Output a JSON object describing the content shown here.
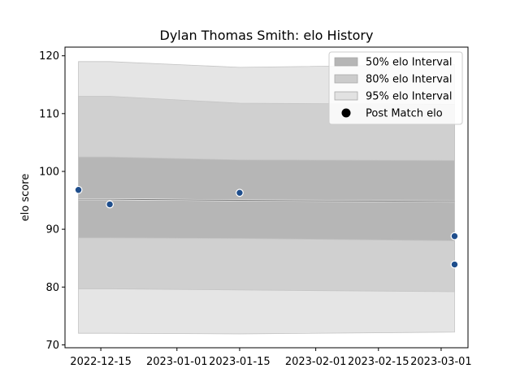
{
  "chart_data": {
    "type": "area",
    "title": "Dylan Thomas Smith: elo History",
    "xlabel": "",
    "ylabel": "elo score",
    "xlim": [
      "2022-12-07",
      "2023-03-07"
    ],
    "ylim": [
      69.5,
      121.5
    ],
    "x_ticks": [
      "2022-12-15",
      "2023-01-01",
      "2023-01-15",
      "2023-02-01",
      "2023-02-15",
      "2023-03-01"
    ],
    "y_ticks": [
      70,
      80,
      90,
      100,
      110,
      120
    ],
    "grid": false,
    "legend_position": "top-right",
    "bands_x": [
      "2022-12-10",
      "2022-12-17",
      "2023-01-15",
      "2023-03-04"
    ],
    "mean": [
      95.2,
      95.2,
      95.0,
      94.8
    ],
    "bands": [
      {
        "name": "95% elo Interval",
        "color": "#e5e5e5",
        "upper": [
          119.0,
          119.0,
          118.0,
          118.5
        ],
        "lower": [
          72.0,
          72.0,
          71.9,
          72.2
        ]
      },
      {
        "name": "80% elo Interval",
        "color": "#d0d0d0",
        "upper": [
          113.0,
          113.0,
          111.8,
          111.6
        ],
        "lower": [
          79.7,
          79.7,
          79.5,
          79.2
        ]
      },
      {
        "name": "50% elo Interval",
        "color": "#b6b6b6",
        "upper": [
          102.5,
          102.5,
          102.0,
          101.9
        ],
        "lower": [
          88.5,
          88.5,
          88.4,
          88.0
        ]
      }
    ],
    "points": {
      "name": "Post Match elo",
      "color": "#1f4e8c",
      "x": [
        "2022-12-10",
        "2022-12-17",
        "2023-01-15",
        "2023-03-04",
        "2023-03-04"
      ],
      "y": [
        96.8,
        94.3,
        96.3,
        88.8,
        83.9
      ]
    },
    "legend": [
      {
        "label": "50% elo Interval",
        "kind": "patch",
        "color": "#b6b6b6"
      },
      {
        "label": "80% elo Interval",
        "kind": "patch",
        "color": "#cccccc"
      },
      {
        "label": "95% elo Interval",
        "kind": "patch",
        "color": "#e2e2e2"
      },
      {
        "label": "Post Match elo",
        "kind": "marker",
        "color": "#000000"
      }
    ]
  }
}
